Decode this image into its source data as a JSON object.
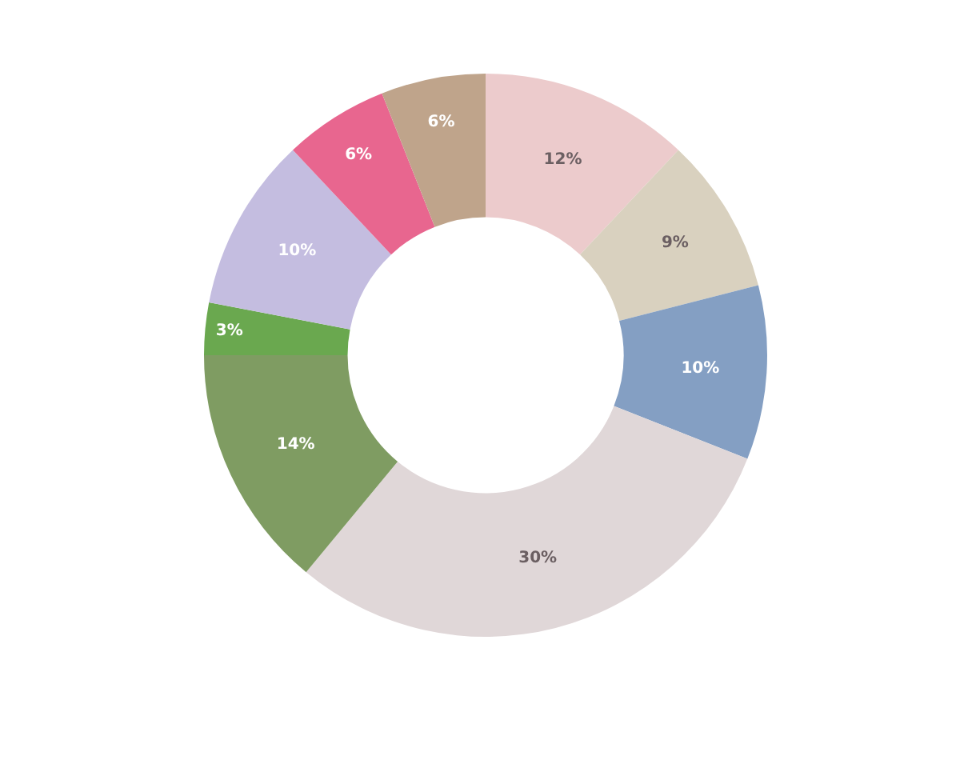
{
  "chart_data": {
    "type": "donut",
    "categories": [
      null,
      null,
      null,
      null,
      null,
      null,
      null,
      null,
      null
    ],
    "values": [
      12,
      9,
      10,
      30,
      14,
      3,
      10,
      6,
      6
    ],
    "value_labels": [
      "12%",
      "9%",
      "10%",
      "30%",
      "14%",
      "3%",
      "10%",
      "6%",
      "6%"
    ],
    "colors": [
      "#eccbcc",
      "#d9d1bf",
      "#849fc3",
      "#e0d7d8",
      "#7f9c62",
      "#6aa84f",
      "#c4bde0",
      "#e8668f",
      "#bfa48b"
    ],
    "legend": false
  }
}
